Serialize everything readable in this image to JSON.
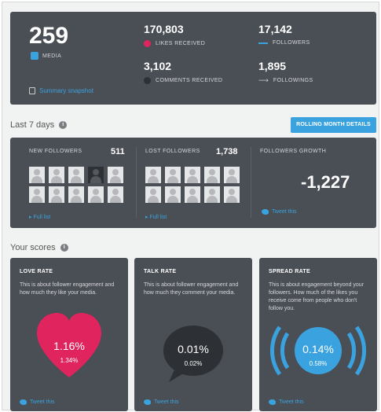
{
  "summary": {
    "media_count": "259",
    "media_label": "MEDIA",
    "likes_count": "170,803",
    "likes_label": "LIKES RECEIVED",
    "comments_count": "3,102",
    "comments_label": "COMMENTS RECEIVED",
    "followers_count": "17,142",
    "followers_label": "FOLLOWERS",
    "followings_count": "1,895",
    "followings_label": "FOLLOWINGS",
    "summary_link": "Summary snapshot",
    "likes_color": "#e0245e",
    "comments_color": "#2d3035",
    "followers_color": "#3aa3df"
  },
  "last7": {
    "title": "Last 7 days",
    "rolling_button": "ROLLING MONTH DETAILS",
    "new_followers_label": "NEW FOLLOWERS",
    "new_followers_count": "511",
    "new_followers_link": "Full list",
    "lost_followers_label": "LOST FOLLOWERS",
    "lost_followers_count": "1,738",
    "lost_followers_link": "Full list",
    "growth_label": "FOLLOWERS GROWTH",
    "growth_value": "-1,227",
    "growth_tweet": "Tweet this"
  },
  "scores": {
    "title": "Your scores",
    "love": {
      "title": "LOVE RATE",
      "desc": "This is about follower engagement and how much they like your media.",
      "value": "1.16%",
      "sub": "1.34%",
      "tweet": "Tweet this",
      "color": "#e0245e"
    },
    "talk": {
      "title": "TALK RATE",
      "desc": "This is about follower engagement and how much they comment your media.",
      "value": "0.01%",
      "sub": "0.02%",
      "tweet": "Tweet this",
      "color": "#2d3035"
    },
    "spread": {
      "title": "SPREAD RATE",
      "desc": "This is about engagement beyond your followers. How much of the likes you receive come from people who don't follow you.",
      "value": "0.14%",
      "sub": "0.58%",
      "tweet": "Tweet this",
      "color": "#3aa3df"
    }
  }
}
